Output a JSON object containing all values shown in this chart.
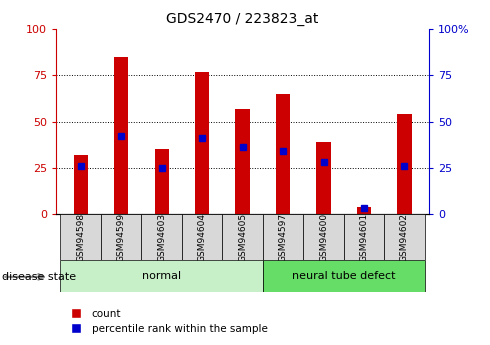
{
  "title": "GDS2470 / 223823_at",
  "samples": [
    "GSM94598",
    "GSM94599",
    "GSM94603",
    "GSM94604",
    "GSM94605",
    "GSM94597",
    "GSM94600",
    "GSM94601",
    "GSM94602"
  ],
  "count_values": [
    32,
    85,
    35,
    77,
    57,
    65,
    39,
    4,
    54
  ],
  "percentile_values": [
    26,
    42,
    25,
    41,
    36,
    34,
    28,
    3,
    26
  ],
  "groups": [
    {
      "label": "normal",
      "start": 0,
      "end": 5
    },
    {
      "label": "neural tube defect",
      "start": 5,
      "end": 9
    }
  ],
  "group_colors": [
    "#c8f0c8",
    "#66dd66"
  ],
  "bar_color": "#CC0000",
  "percentile_color": "#0000CC",
  "ylim": [
    0,
    100
  ],
  "left_axis_color": "#CC0000",
  "right_axis_color": "#0000CC",
  "grid_values": [
    25,
    50,
    75
  ],
  "disease_state_label": "disease state",
  "legend_items": [
    "count",
    "percentile rank within the sample"
  ],
  "tick_labels_left": [
    "0",
    "25",
    "50",
    "75",
    "100"
  ],
  "tick_labels_right": [
    "0",
    "25",
    "50",
    "75",
    "100%"
  ]
}
